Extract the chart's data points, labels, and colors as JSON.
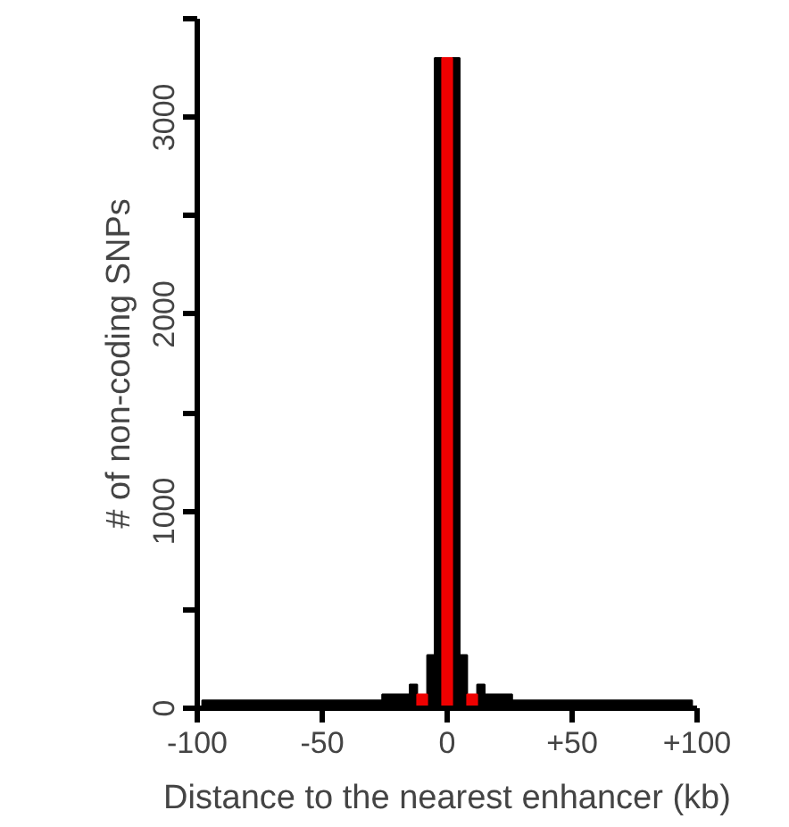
{
  "chart_data": {
    "type": "histogram",
    "xlabel": "Distance to the nearest enhancer (kb)",
    "ylabel": "# of non-coding SNPs",
    "xlim": [
      -100,
      100
    ],
    "xticks": [
      {
        "value": -100,
        "label": "-100"
      },
      {
        "value": -50,
        "label": "-50"
      },
      0,
      {
        "value": 50,
        "label": "+50"
      },
      {
        "value": 100,
        "label": "+100"
      }
    ],
    "ylim": [
      0,
      3500
    ],
    "yticks": [
      0,
      {
        "value": 500,
        "label": null
      },
      1000,
      {
        "value": 1500,
        "label": null
      },
      2000,
      {
        "value": 2500,
        "label": null
      },
      3000,
      {
        "value": 3500,
        "label": null
      }
    ],
    "grid": false,
    "bins": [
      -98,
      -26,
      -15,
      -12,
      -8,
      -5,
      -2,
      2,
      5,
      8,
      12,
      15,
      26,
      98
    ],
    "series": [
      {
        "color": "#000000",
        "values": [
          40,
          70,
          120,
          null,
          270,
          3300,
          null,
          3300,
          270,
          null,
          120,
          70,
          40
        ]
      },
      {
        "color": "#ee0000",
        "values": [
          null,
          null,
          null,
          70,
          null,
          null,
          3300,
          null,
          null,
          70,
          null,
          null,
          null
        ]
      }
    ]
  }
}
